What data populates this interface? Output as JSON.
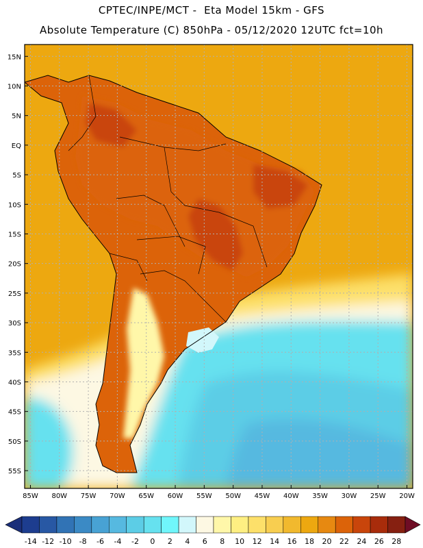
{
  "header": {
    "line1": "CPTEC/INPE/MCT -  Eta Model 15km - GFS",
    "line2": "Absolute Temperature (C) 850hPa - 05/12/2020 12UTC fct=10h"
  },
  "axes": {
    "lat_labels": [
      "15N",
      "10N",
      "5N",
      "EQ",
      "5S",
      "10S",
      "15S",
      "20S",
      "25S",
      "30S",
      "35S",
      "40S",
      "45S",
      "50S",
      "55S"
    ],
    "lat_values": [
      15,
      10,
      5,
      0,
      -5,
      -10,
      -15,
      -20,
      -25,
      -30,
      -35,
      -40,
      -45,
      -50,
      -55
    ],
    "lon_labels": [
      "85W",
      "80W",
      "75W",
      "70W",
      "65W",
      "60W",
      "55W",
      "50W",
      "45W",
      "40W",
      "35W",
      "30W",
      "25W",
      "20W"
    ],
    "lon_values": [
      -85,
      -80,
      -75,
      -70,
      -65,
      -60,
      -55,
      -50,
      -45,
      -40,
      -35,
      -30,
      -25,
      -20
    ],
    "lat_range": [
      -58,
      17
    ],
    "lon_range": [
      -86,
      -19
    ]
  },
  "colorbar": {
    "labels": [
      "-14",
      "-12",
      "-10",
      "-8",
      "-6",
      "-4",
      "-2",
      "0",
      "2",
      "4",
      "6",
      "8",
      "10",
      "12",
      "14",
      "16",
      "18",
      "20",
      "22",
      "24",
      "26",
      "28"
    ],
    "colors": [
      "#1d3d8f",
      "#2858a4",
      "#3173b5",
      "#3b8ac5",
      "#48a2d4",
      "#56b9e0",
      "#5ccde6",
      "#66e1ef",
      "#70f6fb",
      "#d2f7fb",
      "#fdf8e3",
      "#fff7a9",
      "#feef82",
      "#fde06a",
      "#f8ce50",
      "#f1b92e",
      "#eda810",
      "#e78911",
      "#dc6309",
      "#c9450b",
      "#a82c0b",
      "#862011"
    ],
    "low_arrow_color": "#1b2f7a",
    "high_arrow_color": "#6f0d25"
  },
  "colors": {
    "ocean_warm": "#eda810",
    "ocean_cool_edge": "#fde06a",
    "cold_core": "#56b9e0",
    "cyan_band": "#66e1ef",
    "land_hot": "#c9450b",
    "land_warm": "#dc6309",
    "andes_cold": "#fff7a9",
    "border_line": "#000000",
    "grid_line": "#b0b0b0"
  }
}
